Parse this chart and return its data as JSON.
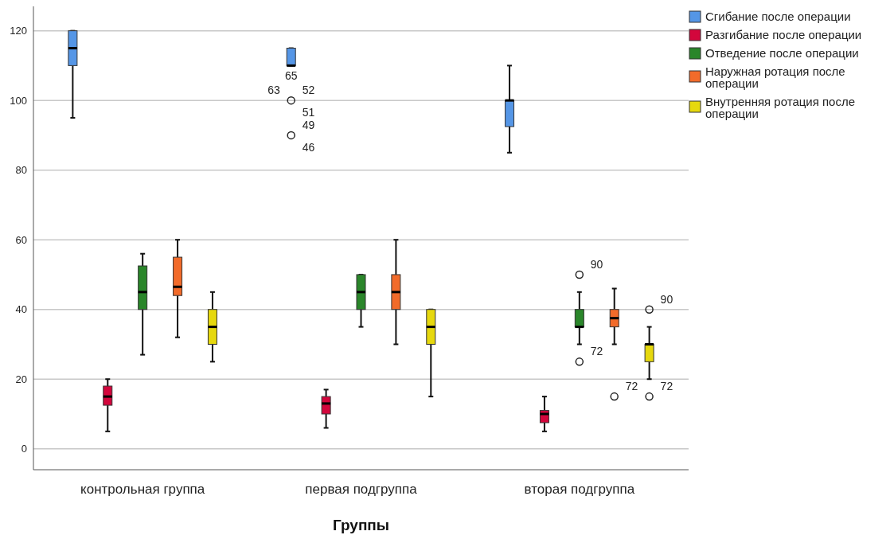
{
  "chart_data": {
    "type": "box",
    "xlabel": "Группы",
    "categories": [
      "контрольная группа",
      "первая подгруппа",
      "вторая подгруппа"
    ],
    "ylim": [
      -6,
      127
    ],
    "yticks": [
      0,
      20,
      40,
      60,
      80,
      100,
      120
    ],
    "grid": "y",
    "legend": "top right",
    "series": [
      {
        "name": "Сгибание после операции",
        "color": "#5596e6",
        "boxes": [
          {
            "low": 95,
            "q1": 110,
            "median": 115,
            "q3": 120,
            "high": 120
          },
          {
            "low": 110,
            "q1": 110,
            "median": 110,
            "q3": 115,
            "high": 115,
            "outliers": [
              100,
              90
            ]
          },
          {
            "low": 85,
            "q1": 92.5,
            "median": 100,
            "q3": 100,
            "high": 110
          }
        ]
      },
      {
        "name": "Разгибание после операции",
        "color": "#d3063c",
        "boxes": [
          {
            "low": 5,
            "q1": 12.5,
            "median": 15,
            "q3": 18,
            "high": 20
          },
          {
            "low": 6,
            "q1": 10,
            "median": 13,
            "q3": 15,
            "high": 17
          },
          {
            "low": 5,
            "q1": 7.5,
            "median": 10,
            "q3": 11,
            "high": 15
          }
        ]
      },
      {
        "name": "Отведение после операции",
        "color": "#2a862a",
        "boxes": [
          {
            "low": 27,
            "q1": 40,
            "median": 45,
            "q3": 52.5,
            "high": 56
          },
          {
            "low": 35,
            "q1": 40,
            "median": 45,
            "q3": 50,
            "high": 50
          },
          {
            "low": 30,
            "q1": 35,
            "median": 35,
            "q3": 40,
            "high": 45,
            "outliers": [
              50,
              25
            ]
          }
        ]
      },
      {
        "name": "Наружная ротация после операции",
        "color": "#f26b2a",
        "boxes": [
          {
            "low": 32,
            "q1": 44,
            "median": 46.5,
            "q3": 55,
            "high": 60
          },
          {
            "low": 30,
            "q1": 40,
            "median": 45,
            "q3": 50,
            "high": 60
          },
          {
            "low": 30,
            "q1": 35,
            "median": 37.5,
            "q3": 40,
            "high": 46,
            "outliers": [
              15
            ]
          }
        ]
      },
      {
        "name": "Внутренняя ротация после операции",
        "color": "#e6d80e",
        "boxes": [
          {
            "low": 25,
            "q1": 30,
            "median": 35,
            "q3": 40,
            "high": 45
          },
          {
            "low": 15,
            "q1": 30,
            "median": 35,
            "q3": 40,
            "high": 40
          },
          {
            "low": 20,
            "q1": 25,
            "median": 30,
            "q3": 30,
            "high": 35,
            "outliers": [
              40,
              15
            ]
          }
        ]
      }
    ],
    "annotations": [
      "65",
      "63",
      "52",
      "51",
      "49",
      "46",
      "90",
      "72",
      "72",
      "90",
      "72"
    ]
  }
}
